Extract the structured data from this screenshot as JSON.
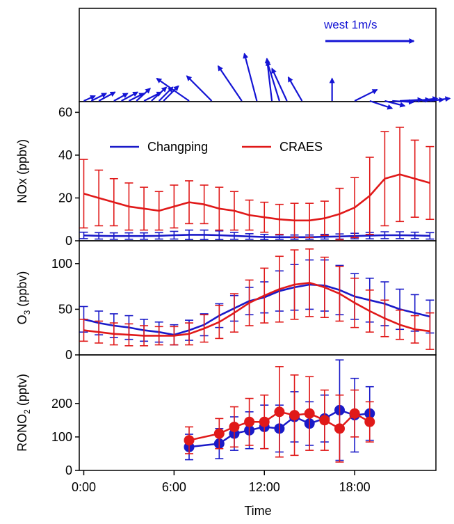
{
  "colors": {
    "changping": "#1a1ac8",
    "craes": "#e01919",
    "wind": "#1414d4",
    "axis": "#000000"
  },
  "chart_data": {
    "type": "line",
    "x_axis": {
      "title": "Time",
      "range": [
        -0.3,
        23.4
      ],
      "ticks": [
        {
          "value": 0,
          "label": "0:00"
        },
        {
          "value": 6,
          "label": "6:00"
        },
        {
          "value": 12,
          "label": "12:00"
        },
        {
          "value": 18,
          "label": "18:00"
        }
      ]
    },
    "legend": {
      "placement": "top-left of NOx panel",
      "entries": [
        {
          "name": "Changping",
          "color": "#1a1ac8"
        },
        {
          "name": "CRAES",
          "color": "#e01919"
        }
      ]
    },
    "wind_panel": {
      "reference_label": "west 1m/s",
      "reference_speed": 1.6,
      "note": "arrows start at the time they refer to, pointing toward the direction of the wind",
      "arrows": [
        {
          "t": 0.0,
          "dx": 0.45,
          "dy": 0.2
        },
        {
          "t": 0.5,
          "dx": 0.6,
          "dy": 0.3
        },
        {
          "t": 1.0,
          "dx": 0.65,
          "dy": 0.35
        },
        {
          "t": 2.0,
          "dx": 0.55,
          "dy": 0.3
        },
        {
          "t": 2.5,
          "dx": 0.65,
          "dy": 0.35
        },
        {
          "t": 3.0,
          "dx": 0.6,
          "dy": 0.3
        },
        {
          "t": 3.5,
          "dx": 0.55,
          "dy": 0.5
        },
        {
          "t": 4.0,
          "dx": 0.7,
          "dy": 0.35
        },
        {
          "t": 4.5,
          "dx": 0.6,
          "dy": 0.55
        },
        {
          "t": 5.0,
          "dx": 0.55,
          "dy": 0.55
        },
        {
          "t": 5.3,
          "dx": 0.6,
          "dy": 0.6
        },
        {
          "t": 7.0,
          "dx": -1.3,
          "dy": 0.9
        },
        {
          "t": 8.5,
          "dx": -1.0,
          "dy": 1.0
        },
        {
          "t": 10.5,
          "dx": -0.95,
          "dy": 1.4
        },
        {
          "t": 11.5,
          "dx": -0.5,
          "dy": 1.9
        },
        {
          "t": 12.5,
          "dx": -0.2,
          "dy": 1.7
        },
        {
          "t": 13.0,
          "dx": -0.5,
          "dy": 1.6
        },
        {
          "t": 13.5,
          "dx": -0.6,
          "dy": 1.3
        },
        {
          "t": 14.5,
          "dx": -0.55,
          "dy": 0.95
        },
        {
          "t": 16.5,
          "dx": 0.0,
          "dy": 0.9
        },
        {
          "t": 18.0,
          "dx": 0.9,
          "dy": 0.45
        },
        {
          "t": 19.0,
          "dx": 0.9,
          "dy": -0.3
        },
        {
          "t": 20.0,
          "dx": 0.8,
          "dy": -0.2
        },
        {
          "t": 20.5,
          "dx": 0.85,
          "dy": -0.05
        },
        {
          "t": 21.0,
          "dx": 0.9,
          "dy": 0.05
        },
        {
          "t": 21.5,
          "dx": 0.9,
          "dy": 0.05
        },
        {
          "t": 22.0,
          "dx": 0.9,
          "dy": 0.1
        },
        {
          "t": 22.5,
          "dx": 0.85,
          "dy": 0.05
        },
        {
          "t": 23.0,
          "dx": 0.8,
          "dy": 0.1
        }
      ]
    },
    "panels": [
      {
        "id": "nox",
        "ylabel": "NOx (ppbv)",
        "ylim": [
          0,
          65
        ],
        "yticks": [
          0,
          20,
          40,
          60
        ],
        "series": [
          {
            "name": "Changping",
            "color": "#1a1ac8",
            "style": "line",
            "x": [
              0,
              1,
              2,
              3,
              4,
              5,
              6,
              7,
              8,
              9,
              10,
              11,
              12,
              13,
              14,
              15,
              16,
              17,
              18,
              19,
              20,
              21,
              22,
              23
            ],
            "y": [
              2.5,
              2.3,
              2.2,
              2.2,
              2.2,
              2.3,
              2.6,
              2.8,
              2.8,
              2.6,
              2.3,
              2.0,
              1.8,
              1.7,
              1.7,
              1.7,
              1.9,
              2.0,
              2.2,
              2.4,
              2.6,
              2.6,
              2.5,
              2.3
            ],
            "err": [
              1.5,
              1.5,
              1.5,
              1.5,
              1.5,
              1.5,
              1.8,
              2.2,
              2.2,
              2.0,
              1.6,
              1.3,
              1.2,
              1.0,
              1.0,
              1.0,
              1.1,
              1.2,
              1.3,
              1.5,
              1.6,
              1.6,
              1.5,
              1.5
            ]
          },
          {
            "name": "CRAES",
            "color": "#e01919",
            "style": "line",
            "x": [
              0,
              1,
              2,
              3,
              4,
              5,
              6,
              7,
              8,
              9,
              10,
              11,
              12,
              13,
              14,
              15,
              16,
              17,
              18,
              19,
              20,
              21,
              22,
              23
            ],
            "y": [
              22,
              20,
              18,
              16,
              15,
              14,
              16,
              18,
              17,
              15,
              14,
              12,
              11,
              10,
              9.5,
              9.5,
              10.5,
              12.5,
              15.5,
              21,
              29,
              31,
              29,
              27
            ],
            "err": [
              16,
              13,
              11,
              11,
              10,
              9,
              10,
              10,
              9,
              10,
              9,
              7,
              7,
              7,
              8,
              8,
              8,
              12,
              14,
              18,
              22,
              22,
              18,
              17
            ]
          }
        ]
      },
      {
        "id": "o3",
        "ylabel": "O3 (ppbv)",
        "ylim": [
          0,
          125
        ],
        "yticks": [
          0,
          50,
          100
        ],
        "series": [
          {
            "name": "Changping",
            "color": "#1a1ac8",
            "style": "line",
            "x": [
              0,
              1,
              2,
              3,
              4,
              5,
              6,
              7,
              8,
              9,
              10,
              11,
              12,
              13,
              14,
              15,
              16,
              17,
              18,
              19,
              20,
              21,
              22,
              23
            ],
            "y": [
              39,
              35,
              32,
              30,
              27,
              25,
              22,
              27,
              33,
              43,
              51,
              59,
              63,
              70,
              74,
              77,
              76,
              71,
              64,
              60,
              56,
              50,
              46,
              42
            ],
            "err": [
              14,
              13,
              13,
              13,
              12,
              11,
              11,
              11,
              12,
              13,
              14,
              15,
              17,
              22,
              25,
              27,
              28,
              27,
              25,
              24,
              24,
              22,
              20,
              18
            ]
          },
          {
            "name": "CRAES",
            "color": "#e01919",
            "style": "line",
            "x": [
              0,
              1,
              2,
              3,
              4,
              5,
              6,
              7,
              8,
              9,
              10,
              11,
              12,
              13,
              14,
              15,
              16,
              17,
              18,
              19,
              20,
              21,
              22,
              23
            ],
            "y": [
              27,
              25,
              23,
              22,
              21,
              21,
              21,
              23,
              29,
              36,
              46,
              57,
              65,
              72,
              77,
              79,
              74,
              67,
              57,
              48,
              40,
              33,
              28,
              26
            ],
            "err": [
              12,
              12,
              12,
              12,
              11,
              10,
              10,
              12,
              15,
              18,
              21,
              25,
              30,
              36,
              38,
              37,
              33,
              30,
              27,
              23,
              20,
              16,
              15,
              20
            ]
          }
        ]
      },
      {
        "id": "rono2",
        "ylabel": "RONO2 (pptv)",
        "ylim": [
          0,
          345
        ],
        "yticks": [
          0,
          100,
          200
        ],
        "series": [
          {
            "name": "Changping",
            "color": "#1a1ac8",
            "style": "markers",
            "x": [
              7,
              9,
              10,
              11,
              12,
              13,
              14,
              15,
              16,
              17,
              18,
              19
            ],
            "y": [
              70,
              80,
              110,
              120,
              130,
              125,
              160,
              140,
              155,
              180,
              165,
              170
            ],
            "err": [
              38,
              45,
              50,
              55,
              65,
              70,
              75,
              65,
              70,
              150,
              110,
              80
            ]
          },
          {
            "name": "CRAES",
            "color": "#e01919",
            "style": "markers",
            "x": [
              7,
              9,
              10,
              11,
              12,
              13,
              14,
              15,
              16,
              17,
              18,
              19
            ],
            "y": [
              90,
              110,
              130,
              145,
              145,
              175,
              165,
              170,
              150,
              125,
              170,
              145
            ],
            "err": [
              40,
              45,
              60,
              70,
              80,
              135,
              120,
              110,
              90,
              100,
              70,
              60
            ]
          }
        ]
      }
    ]
  }
}
